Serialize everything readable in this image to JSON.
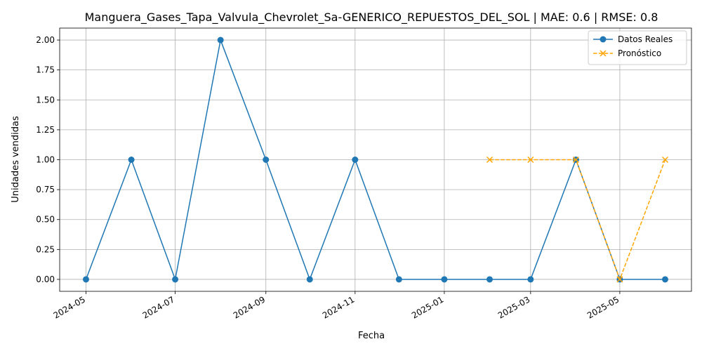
{
  "chart_data": {
    "type": "line",
    "title": "Manguera_Gases_Tapa_Valvula_Chevrolet_Sa-GENERICO_REPUESTOS_DEL_SOL | MAE: 0.6 | RMSE: 0.8",
    "xlabel": "Fecha",
    "ylabel": "Unidades vendidas",
    "ylim": [
      -0.1,
      2.1
    ],
    "xlim": [
      "2024-04-13",
      "2025-06-19"
    ],
    "grid": true,
    "legend_position": "top-right",
    "x_ticks": [
      "2024-05",
      "2024-07",
      "2024-09",
      "2024-11",
      "2025-01",
      "2025-03",
      "2025-05"
    ],
    "y_ticks": [
      "0.00",
      "0.25",
      "0.50",
      "0.75",
      "1.00",
      "1.25",
      "1.50",
      "1.75",
      "2.00"
    ],
    "series": [
      {
        "name": "Datos Reales",
        "color": "#1f77b4",
        "marker": "circle",
        "line_style": "solid",
        "x": [
          "2024-05-01",
          "2024-06-01",
          "2024-07-01",
          "2024-08-01",
          "2024-09-01",
          "2024-10-01",
          "2024-11-01",
          "2024-12-01",
          "2025-01-01",
          "2025-02-01",
          "2025-03-01",
          "2025-04-01",
          "2025-05-01",
          "2025-06-01"
        ],
        "values": [
          0,
          1,
          0,
          2,
          1,
          0,
          1,
          0,
          0,
          0,
          0,
          1,
          0,
          0
        ]
      },
      {
        "name": "Pronóstico",
        "color": "#ffa500",
        "marker": "x",
        "line_style": "dashed",
        "x": [
          "2025-02-01",
          "2025-03-01",
          "2025-04-01",
          "2025-05-01",
          "2025-06-01"
        ],
        "values": [
          1,
          1,
          1,
          0,
          1
        ]
      }
    ]
  }
}
